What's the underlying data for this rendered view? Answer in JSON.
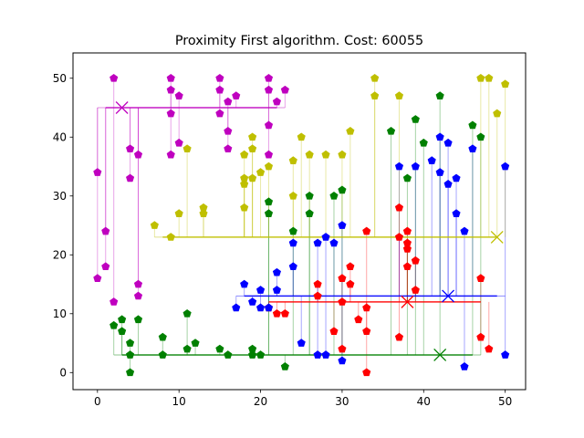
{
  "chart_data": {
    "type": "scatter",
    "title": "Proximity First algorithm. Cost: 60055",
    "xlabel": "",
    "ylabel": "",
    "xlim": [
      -3,
      52.5
    ],
    "ylim": [
      -2.9,
      54.3
    ],
    "xticks": [
      0,
      10,
      20,
      30,
      40,
      50
    ],
    "yticks": [
      0,
      10,
      20,
      30,
      40,
      50
    ],
    "grid": false,
    "marker": "pentagon",
    "series": [
      {
        "color": "#ff0000",
        "center": [
          38,
          12
        ],
        "trunk": {
          "y": 12,
          "x1": 22,
          "x2": 47
        },
        "points": [
          [
            21,
            11
          ],
          [
            22,
            10
          ],
          [
            23,
            10
          ],
          [
            27,
            15
          ],
          [
            27,
            13
          ],
          [
            29,
            7
          ],
          [
            30,
            16
          ],
          [
            30,
            12
          ],
          [
            30,
            4
          ],
          [
            31,
            18
          ],
          [
            31,
            15
          ],
          [
            32,
            9
          ],
          [
            33,
            24
          ],
          [
            33,
            11
          ],
          [
            33,
            7
          ],
          [
            33,
            0
          ],
          [
            37,
            28
          ],
          [
            37,
            23
          ],
          [
            37,
            6
          ],
          [
            38,
            24
          ],
          [
            38,
            22
          ],
          [
            38,
            21
          ],
          [
            38,
            18
          ],
          [
            39,
            19
          ],
          [
            39,
            14
          ],
          [
            47,
            16
          ],
          [
            47,
            6
          ],
          [
            48,
            4
          ]
        ]
      },
      {
        "color": "#0000ff",
        "center": [
          43,
          13
        ],
        "trunk": {
          "y": 13,
          "x1": 17,
          "x2": 50
        },
        "points": [
          [
            17,
            11
          ],
          [
            18,
            15
          ],
          [
            19,
            12
          ],
          [
            20,
            14
          ],
          [
            20,
            11
          ],
          [
            21,
            11
          ],
          [
            22,
            17
          ],
          [
            22,
            14
          ],
          [
            24,
            22
          ],
          [
            24,
            18
          ],
          [
            25,
            5
          ],
          [
            27,
            22
          ],
          [
            27,
            3
          ],
          [
            28,
            23
          ],
          [
            28,
            3
          ],
          [
            29,
            22
          ],
          [
            30,
            25
          ],
          [
            30,
            2
          ],
          [
            37,
            35
          ],
          [
            39,
            35
          ],
          [
            41,
            36
          ],
          [
            42,
            40
          ],
          [
            42,
            34
          ],
          [
            43,
            39
          ],
          [
            43,
            32
          ],
          [
            44,
            33
          ],
          [
            44,
            27
          ],
          [
            45,
            24
          ],
          [
            45,
            1
          ],
          [
            46,
            38
          ],
          [
            50,
            35
          ],
          [
            50,
            3
          ]
        ]
      },
      {
        "color": "#008000",
        "center": [
          42,
          3
        ],
        "trunk": {
          "y": 3,
          "x1": 2,
          "x2": 47
        },
        "points": [
          [
            2,
            8
          ],
          [
            3,
            9
          ],
          [
            3,
            7
          ],
          [
            4,
            5
          ],
          [
            4,
            3
          ],
          [
            4,
            0
          ],
          [
            5,
            9
          ],
          [
            8,
            6
          ],
          [
            8,
            3
          ],
          [
            11,
            10
          ],
          [
            11,
            4
          ],
          [
            12,
            5
          ],
          [
            15,
            4
          ],
          [
            16,
            3
          ],
          [
            19,
            4
          ],
          [
            19,
            3
          ],
          [
            20,
            3
          ],
          [
            21,
            29
          ],
          [
            21,
            27
          ],
          [
            23,
            1
          ],
          [
            24,
            24
          ],
          [
            26,
            30
          ],
          [
            26,
            27
          ],
          [
            29,
            30
          ],
          [
            30,
            31
          ],
          [
            36,
            41
          ],
          [
            38,
            33
          ],
          [
            39,
            43
          ],
          [
            40,
            39
          ],
          [
            42,
            47
          ],
          [
            46,
            42
          ],
          [
            47,
            40
          ]
        ]
      },
      {
        "color": "#bfbf00",
        "center": [
          49,
          23
        ],
        "trunk": {
          "y": 23,
          "x1": 7,
          "x2": 49
        },
        "points": [
          [
            7,
            25
          ],
          [
            9,
            23
          ],
          [
            10,
            27
          ],
          [
            11,
            38
          ],
          [
            13,
            28
          ],
          [
            13,
            27
          ],
          [
            18,
            37
          ],
          [
            18,
            33
          ],
          [
            18,
            32
          ],
          [
            18,
            28
          ],
          [
            19,
            40
          ],
          [
            19,
            38
          ],
          [
            19,
            33
          ],
          [
            20,
            34
          ],
          [
            21,
            35
          ],
          [
            24,
            36
          ],
          [
            24,
            30
          ],
          [
            25,
            40
          ],
          [
            26,
            37
          ],
          [
            28,
            37
          ],
          [
            30,
            37
          ],
          [
            31,
            41
          ],
          [
            34,
            50
          ],
          [
            34,
            47
          ],
          [
            37,
            47
          ],
          [
            47,
            50
          ],
          [
            48,
            50
          ],
          [
            49,
            44
          ],
          [
            50,
            49
          ]
        ]
      },
      {
        "color": "#bf00bf",
        "center": [
          3,
          45
        ],
        "trunk": {
          "y": 45,
          "x1": 0,
          "x2": 23
        },
        "points": [
          [
            0,
            34
          ],
          [
            0,
            16
          ],
          [
            1,
            24
          ],
          [
            1,
            18
          ],
          [
            2,
            50
          ],
          [
            2,
            12
          ],
          [
            4,
            38
          ],
          [
            4,
            33
          ],
          [
            5,
            37
          ],
          [
            5,
            15
          ],
          [
            5,
            13
          ],
          [
            9,
            50
          ],
          [
            9,
            48
          ],
          [
            9,
            44
          ],
          [
            9,
            37
          ],
          [
            10,
            47
          ],
          [
            10,
            39
          ],
          [
            15,
            50
          ],
          [
            15,
            48
          ],
          [
            15,
            44
          ],
          [
            16,
            46
          ],
          [
            16,
            41
          ],
          [
            16,
            38
          ],
          [
            17,
            47
          ],
          [
            21,
            50
          ],
          [
            21,
            48
          ],
          [
            21,
            42
          ],
          [
            21,
            37
          ],
          [
            22,
            46
          ],
          [
            23,
            48
          ]
        ]
      }
    ]
  }
}
